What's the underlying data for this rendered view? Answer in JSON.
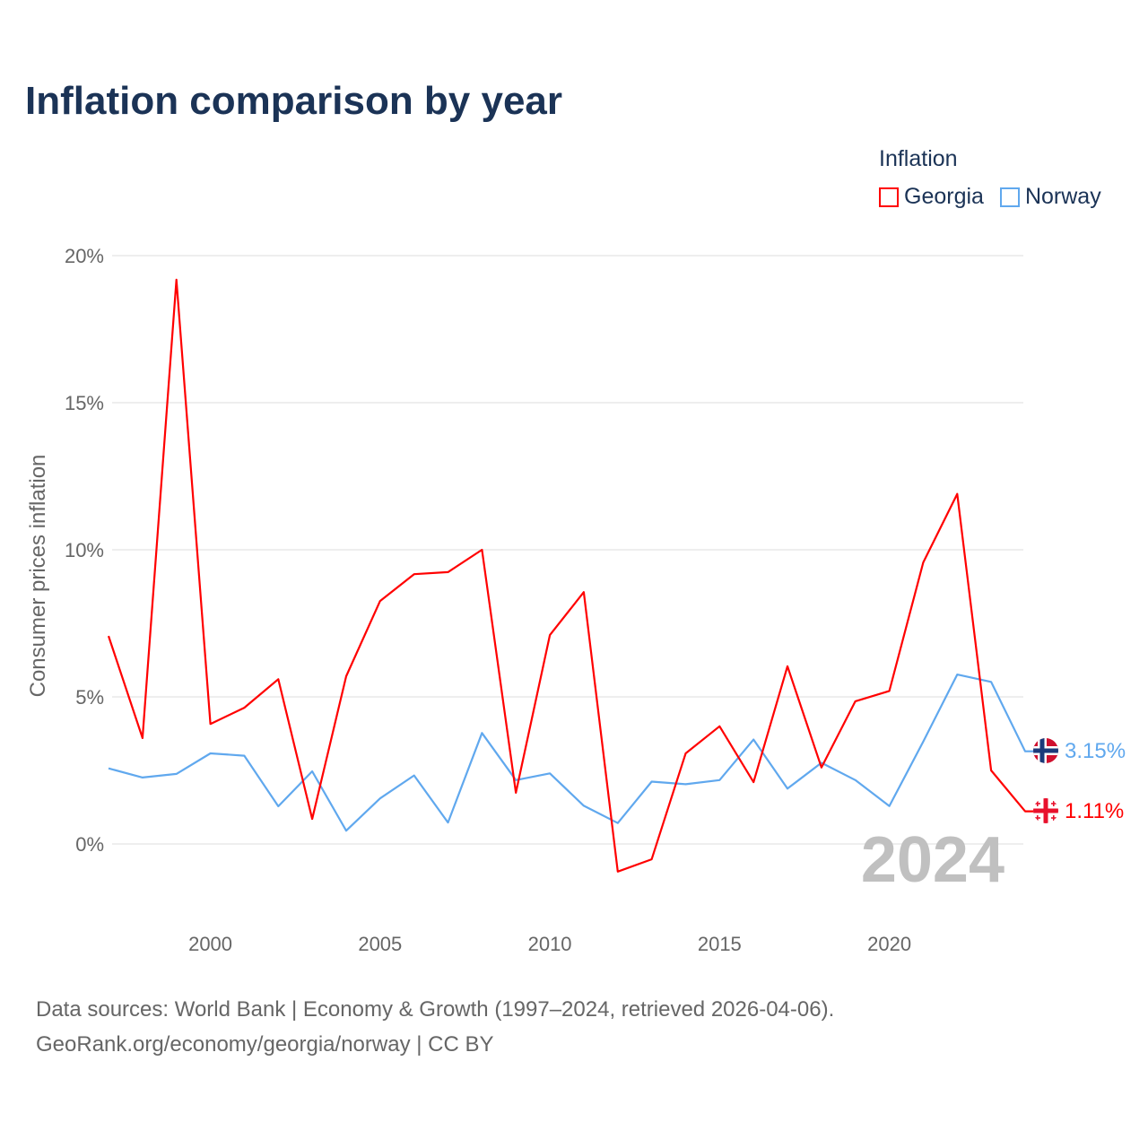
{
  "title": "Inflation comparison by year",
  "legend": {
    "title": "Inflation",
    "items": [
      {
        "label": "Georgia",
        "color": "#ff0000"
      },
      {
        "label": "Norway",
        "color": "#60a8ee"
      }
    ]
  },
  "year_label": "2024",
  "end_labels": {
    "georgia": "1.11%",
    "norway": "3.15%"
  },
  "source": {
    "line1": "Data sources: World Bank | Economy & Growth (1997–2024, retrieved 2026-04-06).",
    "line2": "GeoRank.org/economy/georgia/norway | CC BY"
  },
  "chart_data": {
    "type": "line",
    "title": "Inflation comparison by year",
    "xlabel": "",
    "ylabel": "Consumer prices inflation",
    "xlim": [
      1997,
      2024
    ],
    "ylim": [
      -2.5,
      20.5
    ],
    "xticks": [
      2000,
      2005,
      2010,
      2015,
      2020
    ],
    "yticks": [
      0,
      5,
      10,
      15,
      20
    ],
    "ytick_labels": [
      "0%",
      "5%",
      "10%",
      "15%",
      "20%"
    ],
    "grid": true,
    "legend_position": "top-right",
    "x": [
      1997,
      1998,
      1999,
      2000,
      2001,
      2002,
      2003,
      2004,
      2005,
      2006,
      2007,
      2008,
      2009,
      2010,
      2011,
      2012,
      2013,
      2014,
      2015,
      2016,
      2017,
      2018,
      2019,
      2020,
      2021,
      2022,
      2023,
      2024
    ],
    "series": [
      {
        "name": "Georgia",
        "color": "#ff0000",
        "values": [
          7.07,
          3.6,
          19.18,
          4.08,
          4.63,
          5.6,
          0.85,
          5.7,
          8.26,
          9.17,
          9.24,
          10.0,
          1.74,
          7.1,
          8.56,
          -0.94,
          -0.52,
          3.08,
          4.0,
          2.1,
          6.04,
          2.6,
          4.85,
          5.2,
          9.57,
          11.9,
          2.5,
          1.11
        ]
      },
      {
        "name": "Norway",
        "color": "#60a8ee",
        "values": [
          2.57,
          2.26,
          2.38,
          3.08,
          3.0,
          1.28,
          2.47,
          0.45,
          1.55,
          2.33,
          0.73,
          3.77,
          2.17,
          2.4,
          1.3,
          0.71,
          2.12,
          2.03,
          2.17,
          3.55,
          1.88,
          2.76,
          2.17,
          1.29,
          3.48,
          5.76,
          5.51,
          3.15
        ]
      }
    ]
  }
}
